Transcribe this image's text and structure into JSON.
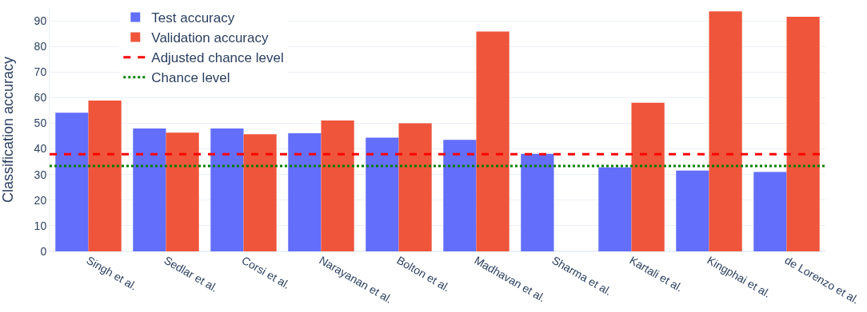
{
  "chart_data": {
    "type": "bar",
    "ylabel": "Classification accuracy",
    "categories": [
      "Singh et al.",
      "Sedlar et al.",
      "Corsi et al.",
      "Narayanan et al.",
      "Bolton et al.",
      "Madhavan et al.",
      "Sharma et al.",
      "Kartali et al.",
      "Kingphai et al.",
      "de Lorenzo et al."
    ],
    "series": [
      {
        "name": "Test accuracy",
        "color": "#636efa",
        "values": [
          54.1,
          48.0,
          48.0,
          46.1,
          44.4,
          43.5,
          38.1,
          32.8,
          31.5,
          31.0
        ]
      },
      {
        "name": "Validation accuracy",
        "color": "#ef553b",
        "values": [
          58.9,
          46.3,
          45.7,
          51.1,
          50.0,
          85.8,
          null,
          58.0,
          93.7,
          91.6
        ]
      }
    ],
    "ref_lines": [
      {
        "axis": "y",
        "value": 37.9,
        "label": "Adjusted chance level",
        "color": "#ff0000",
        "line_style": "dashed"
      },
      {
        "axis": "y",
        "value": 33.3,
        "label": "Chance level",
        "color": "#008000",
        "line_style": "dotted"
      }
    ],
    "ylim": [
      0,
      95
    ],
    "yticks": [
      0,
      10,
      20,
      30,
      40,
      50,
      60,
      70,
      80,
      90
    ],
    "grid": "y",
    "legend": "top left"
  }
}
